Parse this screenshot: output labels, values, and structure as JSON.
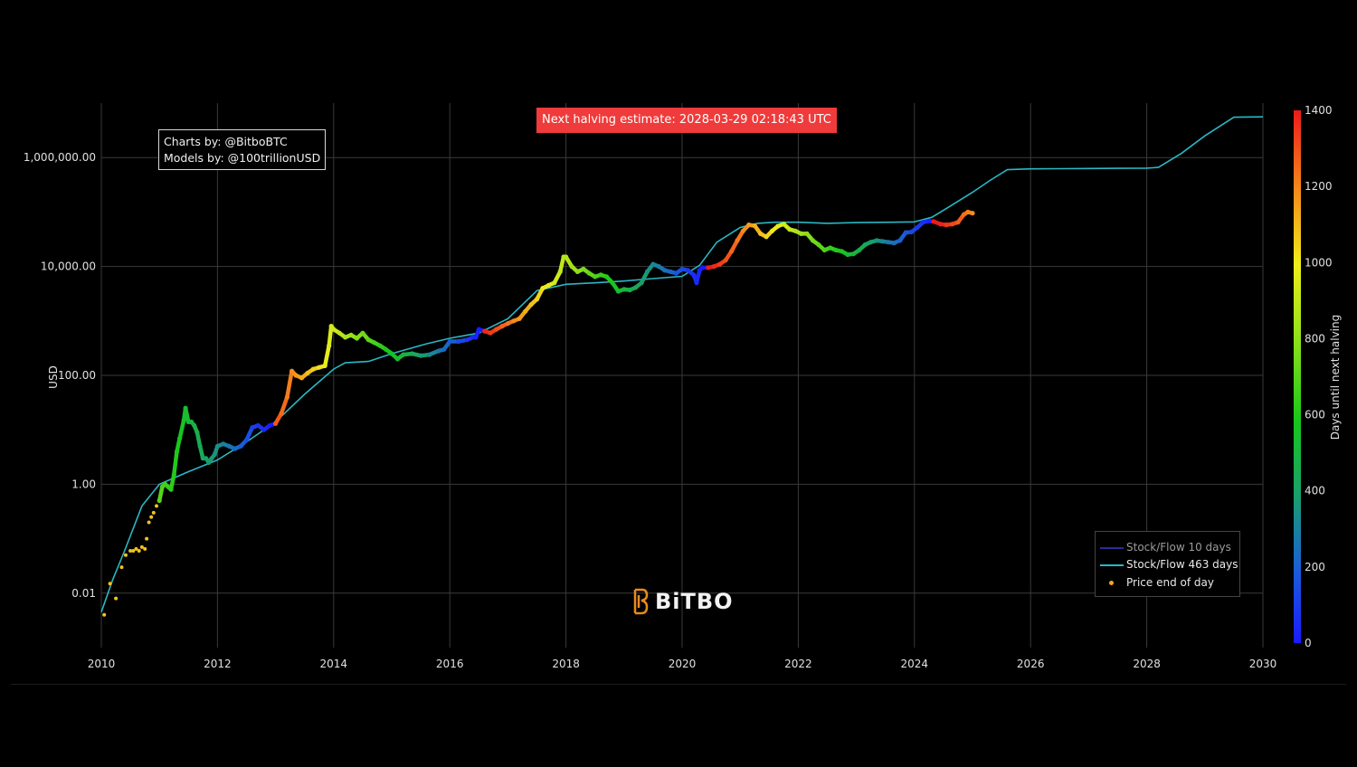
{
  "title_banner": "Next halving estimate: 2028-03-29 02:18:43 UTC",
  "credits": {
    "line1": "Charts by: @BitboBTC",
    "line2": "Models by: @100trillionUSD"
  },
  "logo": {
    "text": "BiTBO",
    "icon": "bitbo-b-icon",
    "color": "#e8891f"
  },
  "legend": {
    "items": [
      {
        "label": "Stock/Flow 10 days",
        "color": "#2a2a9a",
        "kind": "line"
      },
      {
        "label": "Stock/Flow 463 days",
        "color": "#2ab7c4",
        "kind": "line"
      },
      {
        "label": "Price end of day",
        "color": "#f0a81f",
        "kind": "dot"
      }
    ]
  },
  "chart_data": {
    "type": "scatter",
    "yscale": "log",
    "ylabel": "USD",
    "xlabel": "",
    "xlim": [
      2010,
      2030
    ],
    "ylim": [
      0.001,
      10000000
    ],
    "x_ticks": [
      "2010",
      "2012",
      "2014",
      "2016",
      "2018",
      "2020",
      "2022",
      "2024",
      "2026",
      "2028",
      "2030"
    ],
    "y_ticks": [
      {
        "value": 0.01,
        "label": "0.01"
      },
      {
        "value": 1,
        "label": "1.00"
      },
      {
        "value": 100,
        "label": "100.00"
      },
      {
        "value": 10000,
        "label": "10,000.00"
      },
      {
        "value": 1000000,
        "label": "1,000,000.00"
      }
    ],
    "grid": true,
    "colorbar": {
      "label": "Days until next halving",
      "range": [
        0,
        1400
      ],
      "ticks": [
        "0",
        "200",
        "400",
        "600",
        "800",
        "1000",
        "1200",
        "1400"
      ]
    },
    "series": [
      {
        "name": "Stock/Flow 463 days",
        "x": [
          2010.0,
          2010.2,
          2010.4,
          2010.7,
          2011.0,
          2011.5,
          2012.0,
          2012.5,
          2013.0,
          2013.5,
          2014.0,
          2014.2,
          2014.6,
          2015.0,
          2015.6,
          2016.0,
          2016.5,
          2017.0,
          2017.5,
          2018.0,
          2018.5,
          2019.0,
          2019.5,
          2020.0,
          2020.3,
          2020.6,
          2021.0,
          2021.3,
          2021.6,
          2022.0,
          2022.5,
          2023.0,
          2023.6,
          2024.0,
          2024.3,
          2024.6,
          2025.0,
          2025.3,
          2025.6,
          2026.0,
          2026.5,
          2027.0,
          2027.5,
          2028.0,
          2028.2,
          2028.6,
          2029.0,
          2029.5,
          2030.0
        ],
        "y": [
          0.0045,
          0.018,
          0.06,
          0.4,
          1.0,
          1.7,
          2.8,
          6.0,
          14,
          45,
          130,
          170,
          180,
          250,
          380,
          480,
          600,
          1100,
          3600,
          4700,
          5000,
          5400,
          6000,
          6600,
          10500,
          28000,
          52000,
          62000,
          65000,
          65000,
          62000,
          64000,
          65000,
          66000,
          80000,
          125000,
          230000,
          380000,
          600000,
          620000,
          625000,
          630000,
          635000,
          640000,
          660000,
          1200000,
          2500000,
          5500000,
          5600000
        ]
      },
      {
        "name": "Price end of day",
        "x": [
          2010.05,
          2010.15,
          2010.25,
          2010.35,
          2010.42,
          2010.5,
          2010.55,
          2010.6,
          2010.65,
          2010.7,
          2010.75,
          2010.78,
          2010.82,
          2010.86,
          2010.9,
          2010.95,
          2011.0,
          2011.05,
          2011.1,
          2011.15,
          2011.2,
          2011.25,
          2011.3,
          2011.35,
          2011.42,
          2011.45,
          2011.5,
          2011.55,
          2011.6,
          2011.65,
          2011.7,
          2011.75,
          2011.8,
          2011.85,
          2011.9,
          2011.95,
          2012.0,
          2012.1,
          2012.2,
          2012.3,
          2012.4,
          2012.5,
          2012.6,
          2012.7,
          2012.8,
          2012.9,
          2013.0,
          2013.1,
          2013.2,
          2013.28,
          2013.35,
          2013.45,
          2013.55,
          2013.65,
          2013.75,
          2013.85,
          2013.92,
          2013.96,
          2014.0,
          2014.1,
          2014.2,
          2014.3,
          2014.4,
          2014.5,
          2014.6,
          2014.7,
          2014.8,
          2014.9,
          2015.0,
          2015.1,
          2015.2,
          2015.35,
          2015.5,
          2015.65,
          2015.8,
          2015.9,
          2016.0,
          2016.15,
          2016.3,
          2016.4,
          2016.45,
          2016.5,
          2016.6,
          2016.7,
          2016.8,
          2016.9,
          2017.0,
          2017.1,
          2017.2,
          2017.3,
          2017.4,
          2017.5,
          2017.6,
          2017.7,
          2017.8,
          2017.9,
          2017.96,
          2018.0,
          2018.1,
          2018.2,
          2018.3,
          2018.4,
          2018.5,
          2018.6,
          2018.7,
          2018.8,
          2018.9,
          2019.0,
          2019.1,
          2019.2,
          2019.3,
          2019.4,
          2019.5,
          2019.6,
          2019.7,
          2019.8,
          2019.9,
          2020.0,
          2020.1,
          2020.2,
          2020.25,
          2020.3,
          2020.35,
          2020.45,
          2020.55,
          2020.65,
          2020.75,
          2020.85,
          2020.95,
          2021.05,
          2021.15,
          2021.25,
          2021.35,
          2021.45,
          2021.55,
          2021.65,
          2021.75,
          2021.85,
          2021.95,
          2022.05,
          2022.15,
          2022.25,
          2022.35,
          2022.45,
          2022.55,
          2022.65,
          2022.75,
          2022.85,
          2022.95,
          2023.05,
          2023.15,
          2023.25,
          2023.35,
          2023.45,
          2023.55,
          2023.65,
          2023.75,
          2023.85,
          2023.95,
          2024.05,
          2024.15,
          2024.25,
          2024.33,
          2024.45,
          2024.55,
          2024.65,
          2024.75,
          2024.85,
          2024.92,
          2025.0
        ],
        "y": [
          0.004,
          0.015,
          0.008,
          0.03,
          0.05,
          0.06,
          0.06,
          0.065,
          0.06,
          0.07,
          0.065,
          0.1,
          0.2,
          0.25,
          0.3,
          0.4,
          0.5,
          0.9,
          1.0,
          0.9,
          0.8,
          1.5,
          4,
          7,
          15,
          25,
          14,
          14,
          12,
          9,
          5,
          3,
          3,
          2.5,
          3,
          3.5,
          5,
          5.5,
          5,
          4.5,
          5,
          6.5,
          11,
          12,
          10,
          12,
          13,
          20,
          40,
          120,
          100,
          90,
          110,
          130,
          140,
          150,
          350,
          800,
          700,
          600,
          500,
          550,
          480,
          600,
          450,
          400,
          350,
          300,
          250,
          200,
          240,
          250,
          230,
          240,
          280,
          300,
          420,
          420,
          450,
          500,
          500,
          700,
          650,
          600,
          700,
          800,
          900,
          1000,
          1100,
          1500,
          2000,
          2500,
          4000,
          4500,
          5000,
          8000,
          15000,
          15000,
          10000,
          8000,
          9000,
          7500,
          6500,
          7000,
          6500,
          5000,
          3500,
          3800,
          3700,
          4100,
          5000,
          8000,
          11000,
          10000,
          8500,
          8000,
          7500,
          9000,
          8500,
          7000,
          5000,
          8500,
          9500,
          9500,
          10000,
          11000,
          13000,
          19000,
          30000,
          45000,
          58000,
          56000,
          40000,
          35000,
          45000,
          55000,
          60000,
          48000,
          45000,
          40000,
          40000,
          30000,
          25000,
          20000,
          22000,
          20000,
          19000,
          16500,
          17000,
          20000,
          25000,
          28000,
          30000,
          29000,
          28000,
          27000,
          30000,
          42000,
          43000,
          52000,
          65000,
          68000,
          67000,
          60000,
          58000,
          60000,
          65000,
          90000,
          100000,
          95000
        ]
      }
    ]
  }
}
